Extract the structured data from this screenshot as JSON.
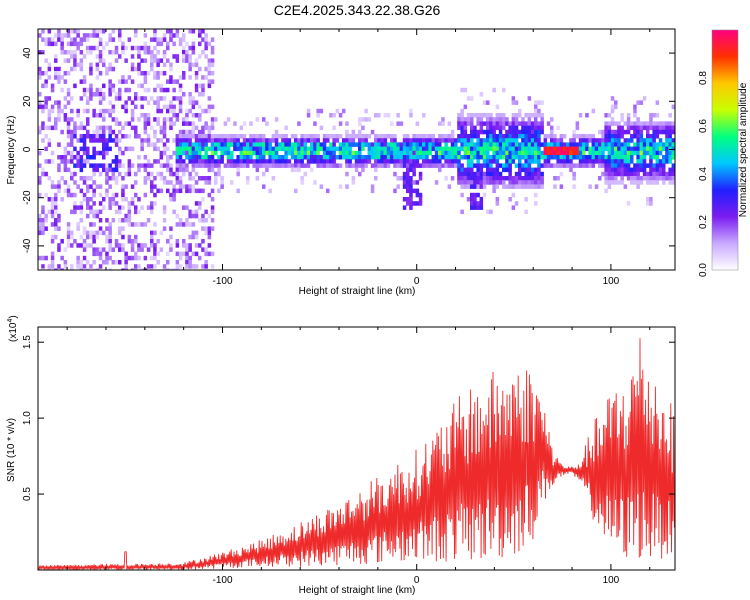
{
  "title": "C2E4.2025.343.22.38.G26",
  "chart_data": [
    {
      "type": "heatmap",
      "title": "C2E4.2025.343.22.38.G26",
      "xlabel": "Height of straight line (km)",
      "ylabel": "Frequency (Hz)",
      "xlim": [
        -195,
        133
      ],
      "ylim": [
        -50,
        50
      ],
      "xticks": [
        -100,
        0,
        100
      ],
      "yticks": [
        -40,
        -20,
        0,
        20,
        40
      ],
      "grid": false,
      "colorbar": {
        "label": "Normalized spectral amplitude",
        "range": [
          0.0,
          1.0
        ],
        "ticks": [
          0.0,
          0.2,
          0.4,
          0.6,
          0.8
        ],
        "tick_labels": [
          "0.0",
          "0.2",
          "0.4",
          "0.6",
          "0.8"
        ],
        "colors": [
          "#ffffff",
          "#c9a9ff",
          "#7a1cf0",
          "#2020ff",
          "#00c8ff",
          "#00ff80",
          "#c8ff00",
          "#ffc800",
          "#ff3000",
          "#ff0080"
        ]
      },
      "features": {
        "noise_region_x": [
          -195,
          -105
        ],
        "band_center_freq": 0,
        "band_x": [
          -125,
          133
        ],
        "hot_segment_x": [
          65,
          82
        ],
        "hot_segment_value": 1.0
      }
    },
    {
      "type": "line",
      "xlabel": "Height of straight line (km)",
      "ylabel": "SNR (10 * v/v)",
      "y_multiplier_label": "(x10",
      "y_multiplier_exp": "4",
      "y_multiplier_close": ")",
      "xlim": [
        -195,
        133
      ],
      "ylim": [
        0,
        1.6
      ],
      "xticks": [
        -100,
        0,
        100
      ],
      "yticks": [
        0.5,
        1.0,
        1.5
      ],
      "ytick_labels": [
        "0.5",
        "1.0",
        "1.5"
      ],
      "grid": false,
      "color": "#ee2a2a",
      "envelope": {
        "x": [
          -195,
          -160,
          -150,
          -120,
          -100,
          -80,
          -60,
          -40,
          -20,
          -10,
          0,
          10,
          20,
          30,
          40,
          50,
          60,
          66,
          70,
          75,
          80,
          85,
          90,
          100,
          110,
          115,
          120,
          133
        ],
        "low": [
          0.0,
          0.0,
          0.0,
          0.0,
          0.01,
          0.02,
          0.02,
          0.03,
          0.04,
          0.05,
          0.05,
          0.05,
          0.05,
          0.05,
          0.06,
          0.08,
          0.2,
          0.45,
          0.55,
          0.62,
          0.63,
          0.55,
          0.35,
          0.1,
          0.05,
          0.06,
          0.05,
          0.1
        ],
        "high": [
          0.03,
          0.04,
          0.04,
          0.05,
          0.12,
          0.2,
          0.32,
          0.45,
          0.62,
          0.72,
          0.8,
          0.95,
          1.12,
          1.25,
          1.32,
          1.38,
          1.35,
          1.1,
          0.8,
          0.7,
          0.68,
          0.75,
          0.95,
          1.2,
          1.35,
          1.6,
          1.4,
          1.05
        ]
      },
      "spike": {
        "x": -150,
        "value": 0.12
      }
    }
  ]
}
